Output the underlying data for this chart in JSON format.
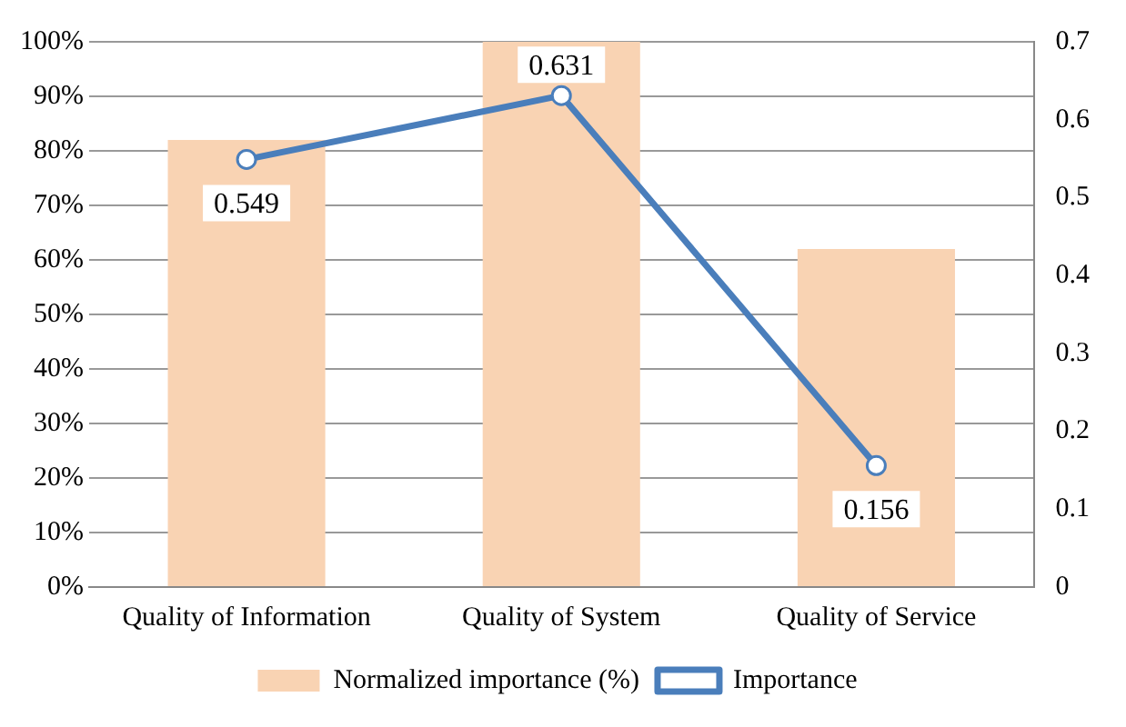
{
  "chart_data": {
    "type": "bar",
    "categories": [
      "Quality of Information",
      "Quality of System",
      "Quality of Service"
    ],
    "series": [
      {
        "name": "Normalized importance (%)",
        "color": "#f9d3b3",
        "values": [
          82,
          100,
          62
        ]
      },
      {
        "name": "Importance",
        "type": "line",
        "axis": "y2",
        "color": "#4a7ebb",
        "values": [
          0.549,
          0.631,
          0.156
        ],
        "value_labels": [
          "0.549",
          "0.631",
          "0.156"
        ]
      }
    ],
    "ylim": [
      0,
      100
    ],
    "yticks": [
      {
        "value": 0,
        "label": "0%"
      },
      {
        "value": 10,
        "label": "10%"
      },
      {
        "value": 20,
        "label": "20%"
      },
      {
        "value": 30,
        "label": "30%"
      },
      {
        "value": 40,
        "label": "40%"
      },
      {
        "value": 50,
        "label": "50%"
      },
      {
        "value": 60,
        "label": "60%"
      },
      {
        "value": 70,
        "label": "70%"
      },
      {
        "value": 80,
        "label": "80%"
      },
      {
        "value": 90,
        "label": "90%"
      },
      {
        "value": 100,
        "label": "100%"
      }
    ],
    "y2lim": [
      0,
      0.7
    ],
    "y2ticks": [
      0,
      0.1,
      0.2,
      0.3,
      0.4,
      0.5,
      0.6,
      0.7
    ],
    "grid": "y",
    "legend": "bottom",
    "marker": "circle",
    "line_style": "solid"
  }
}
